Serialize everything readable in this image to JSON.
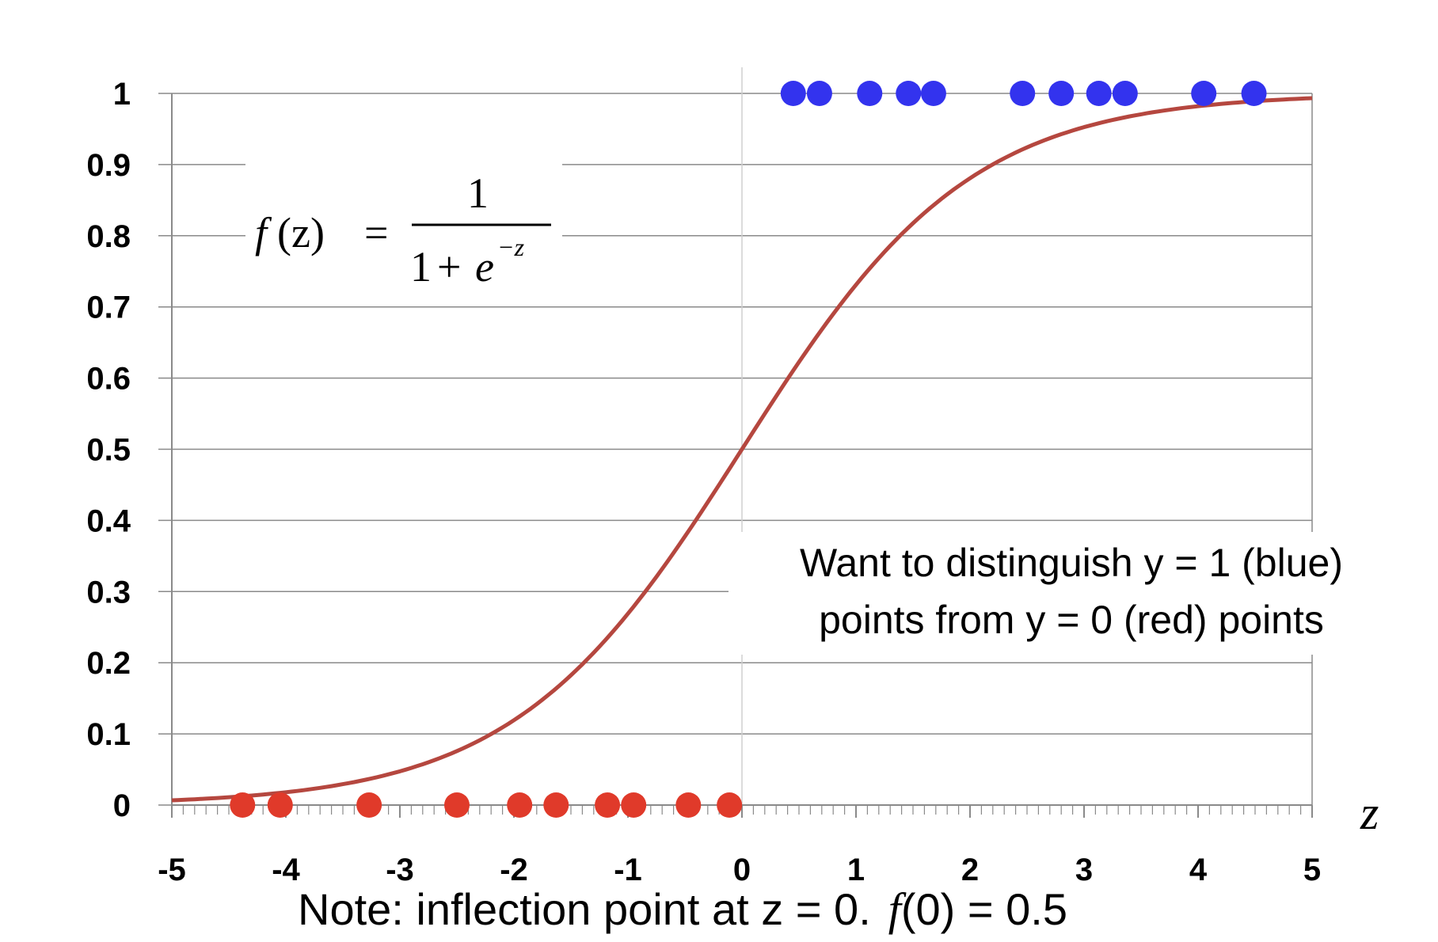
{
  "chart_data": {
    "type": "line",
    "title": "",
    "xlabel": "z",
    "ylabel": "",
    "xlim": [
      -5,
      5
    ],
    "ylim": [
      0,
      1
    ],
    "grid": true,
    "x_ticks": [
      "-5",
      "-4",
      "-3",
      "-2",
      "-1",
      "0",
      "1",
      "2",
      "3",
      "4",
      "5"
    ],
    "y_ticks": [
      "0",
      "0.1",
      "0.2",
      "0.3",
      "0.4",
      "0.5",
      "0.6",
      "0.7",
      "0.8",
      "0.9",
      "1"
    ],
    "curve": {
      "function": "sigmoid",
      "x": [
        -5,
        -4,
        -3,
        -2.5,
        -2,
        -1.5,
        -1,
        -0.5,
        0,
        0.5,
        1,
        1.5,
        2,
        2.5,
        3,
        4,
        5
      ],
      "y": [
        0.007,
        0.018,
        0.047,
        0.076,
        0.119,
        0.182,
        0.269,
        0.378,
        0.5,
        0.622,
        0.731,
        0.818,
        0.881,
        0.924,
        0.953,
        0.982,
        0.993
      ],
      "color": "#b5473f"
    },
    "series": [
      {
        "name": "y = 1",
        "color": "#3333ee",
        "x": [
          0.45,
          0.68,
          1.12,
          1.46,
          1.68,
          2.46,
          2.8,
          3.13,
          3.36,
          4.05,
          4.49
        ],
        "y": [
          1,
          1,
          1,
          1,
          1,
          1,
          1,
          1,
          1,
          1,
          1
        ]
      },
      {
        "name": "y = 0",
        "color": "#e03a2a",
        "x": [
          -4.38,
          -4.05,
          -3.27,
          -2.5,
          -1.95,
          -1.63,
          -1.18,
          -0.95,
          -0.47,
          -0.11
        ],
        "y": [
          0,
          0,
          0,
          0,
          0,
          0,
          0,
          0,
          0,
          0
        ]
      }
    ],
    "annotations": {
      "formula": {
        "lhs": "f",
        "arg": "(z)",
        "equals": "=",
        "numerator": "1",
        "den_one": "1",
        "den_plus": "+",
        "den_e": "e",
        "den_exp": "−z"
      },
      "description_line1": "Want to distinguish y = 1 (blue)",
      "description_line2": "points from y = 0 (red) points",
      "note_prefix": "Note: inflection point at z = 0.",
      "note_f": "f",
      "note_suffix": "(0) = 0.5"
    }
  }
}
